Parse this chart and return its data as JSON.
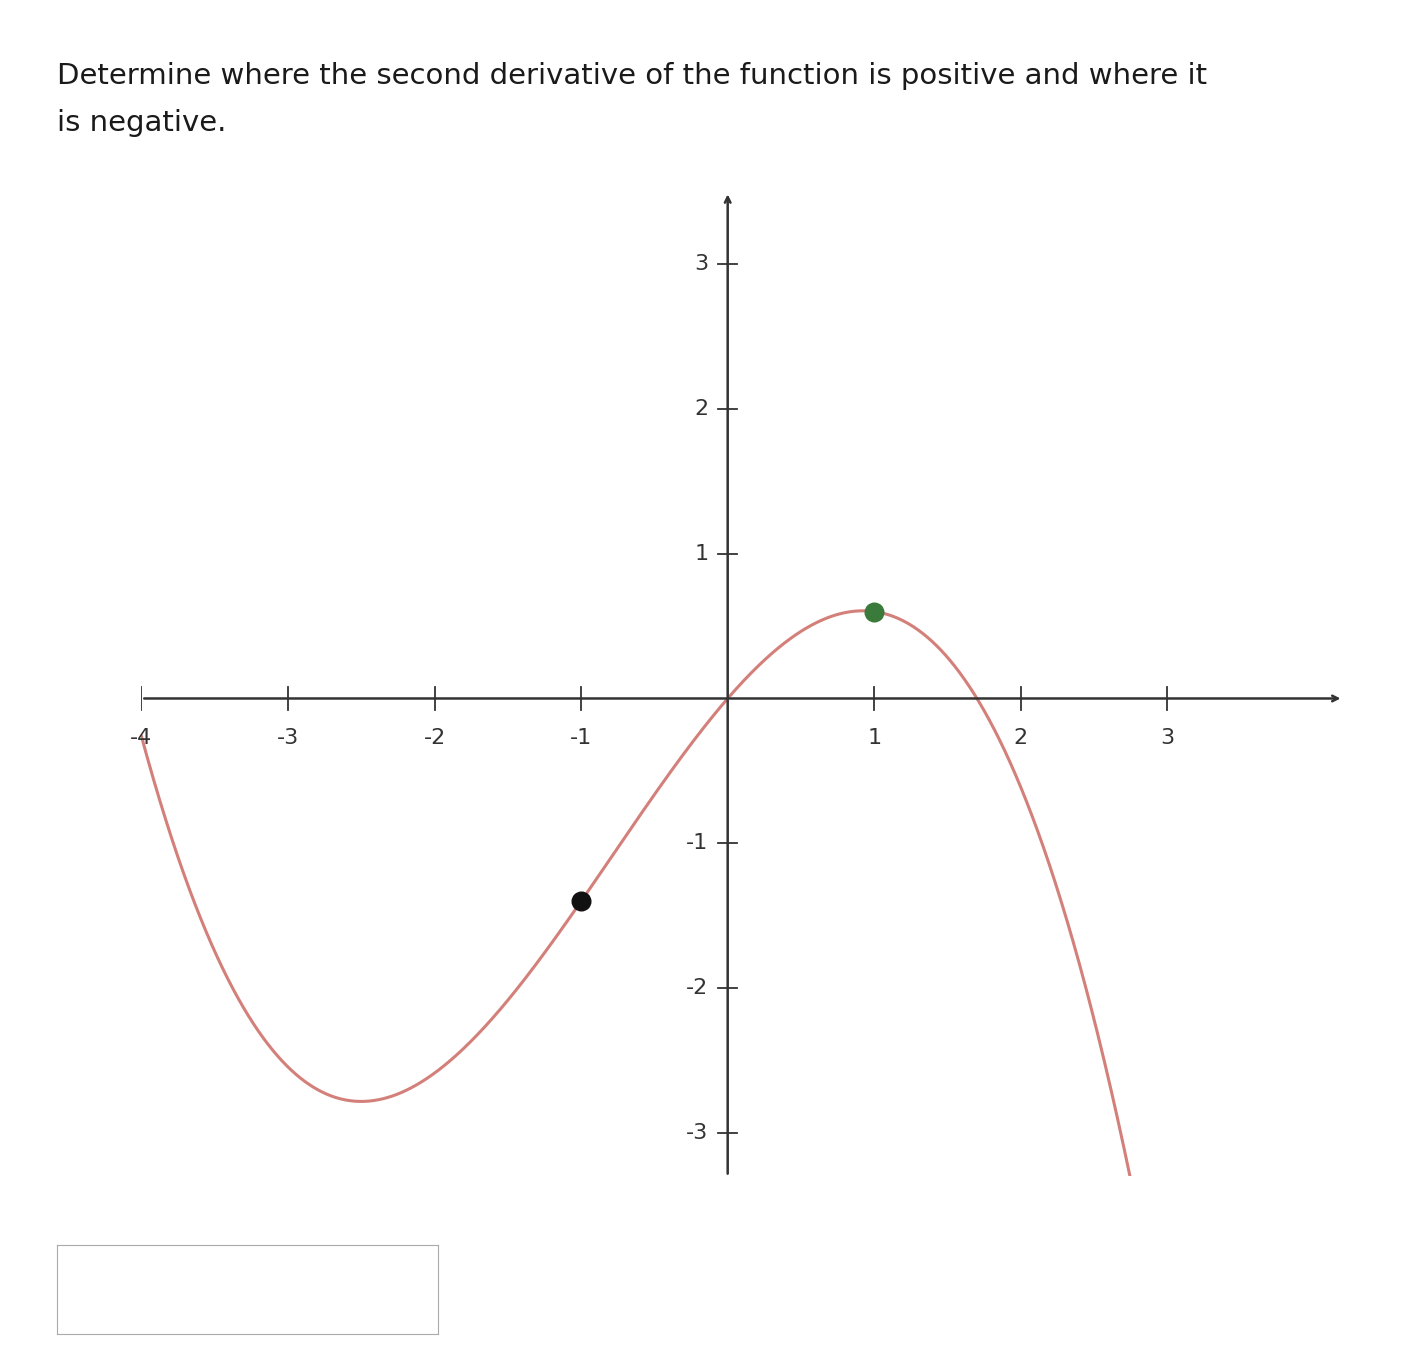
{
  "title_line1": "Determine where the second derivative of the function is positive and where it",
  "title_line2": "is negative.",
  "title_fontsize": 21,
  "title_color": "#1a1a1a",
  "curve_color": "#d4807a",
  "curve_linewidth": 2.2,
  "xlim": [
    -4.0,
    4.2
  ],
  "ylim": [
    -3.3,
    3.5
  ],
  "xticks": [
    -4,
    -3,
    -2,
    -1,
    1,
    2,
    3
  ],
  "yticks": [
    -3,
    -2,
    -1,
    1,
    2,
    3
  ],
  "tick_fontsize": 16,
  "tick_color": "#333333",
  "axis_color": "#333333",
  "axis_linewidth": 1.8,
  "black_dot_x": -1.0,
  "black_dot_y": -1.33,
  "green_dot_x": 1.0,
  "green_dot_y": 0.6,
  "dot_size": 100,
  "black_dot_color": "#111111",
  "green_dot_color": "#3a7a3a",
  "bg_color": "#ffffff",
  "a": 0.333,
  "b": 1.0,
  "c": 0.0,
  "d": 0.0
}
